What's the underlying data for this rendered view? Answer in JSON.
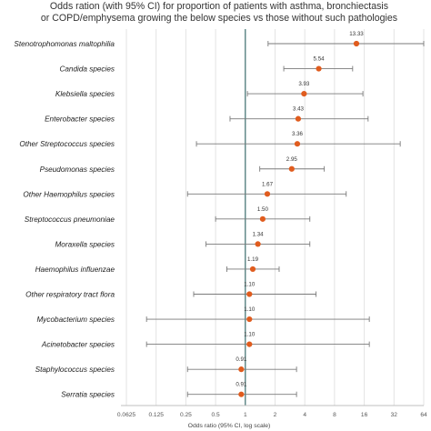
{
  "chart_data": {
    "type": "forest",
    "title_lines": [
      "Odds ration (with 95% CI) for proportion of patients with asthma, bronchiectasis",
      "or COPD/emphysema growing the below species vs those without such pathologies"
    ],
    "xlabel": "Odds ratio (95% CI, log scale)",
    "x_scale": "log2",
    "reference_line": 1,
    "xlim": [
      0.0625,
      64
    ],
    "x_ticks": [
      0.0625,
      0.125,
      0.25,
      0.5,
      1,
      2,
      4,
      8,
      16,
      32,
      64
    ],
    "x_tick_labels": [
      "0.0625",
      "0.125",
      "0.25",
      "0.5",
      "1",
      "2",
      "4",
      "8",
      "16",
      "32",
      "64"
    ],
    "grid": true,
    "categories": [
      "Stenotrophomonas maltophilia",
      "Candida species",
      "Klebsiella species",
      "Enterobacter species",
      "Other Streptococcus species",
      "Pseudomonas species",
      "Other Haemophilus species",
      "Streptococcus pneumoniae",
      "Moraxella species",
      "Haemophilus influenzae",
      "Other respiratory tract flora",
      "Mycobacterium species",
      "Acinetobacter species",
      "Staphylococcus species",
      "Serratia species"
    ],
    "values": [
      13.33,
      5.54,
      3.93,
      3.43,
      3.36,
      2.95,
      1.67,
      1.5,
      1.34,
      1.19,
      1.1,
      1.1,
      1.1,
      0.91,
      0.91
    ],
    "value_labels": [
      "13.33",
      "5.54",
      "3.93",
      "3.43",
      "3.36",
      "2.95",
      "1.67",
      "1.50",
      "1.34",
      "1.19",
      "1.10",
      "1.10",
      "1.10",
      "0.91",
      "0.91"
    ],
    "ci_lower": [
      1.7,
      2.45,
      1.05,
      0.7,
      0.32,
      1.4,
      0.26,
      0.5,
      0.4,
      0.65,
      0.3,
      0.1,
      0.1,
      0.26,
      0.26
    ],
    "ci_upper": [
      64,
      12.2,
      15.5,
      17.5,
      37,
      6.3,
      10.5,
      4.5,
      4.5,
      2.2,
      5.2,
      18,
      18,
      3.3,
      3.3
    ],
    "colors": {
      "point": "#e05c1e",
      "ci": "#7a7a7a",
      "reference": "#3d6f6f",
      "grid": "#e3e3e3",
      "axis": "#bfbfbf"
    }
  }
}
